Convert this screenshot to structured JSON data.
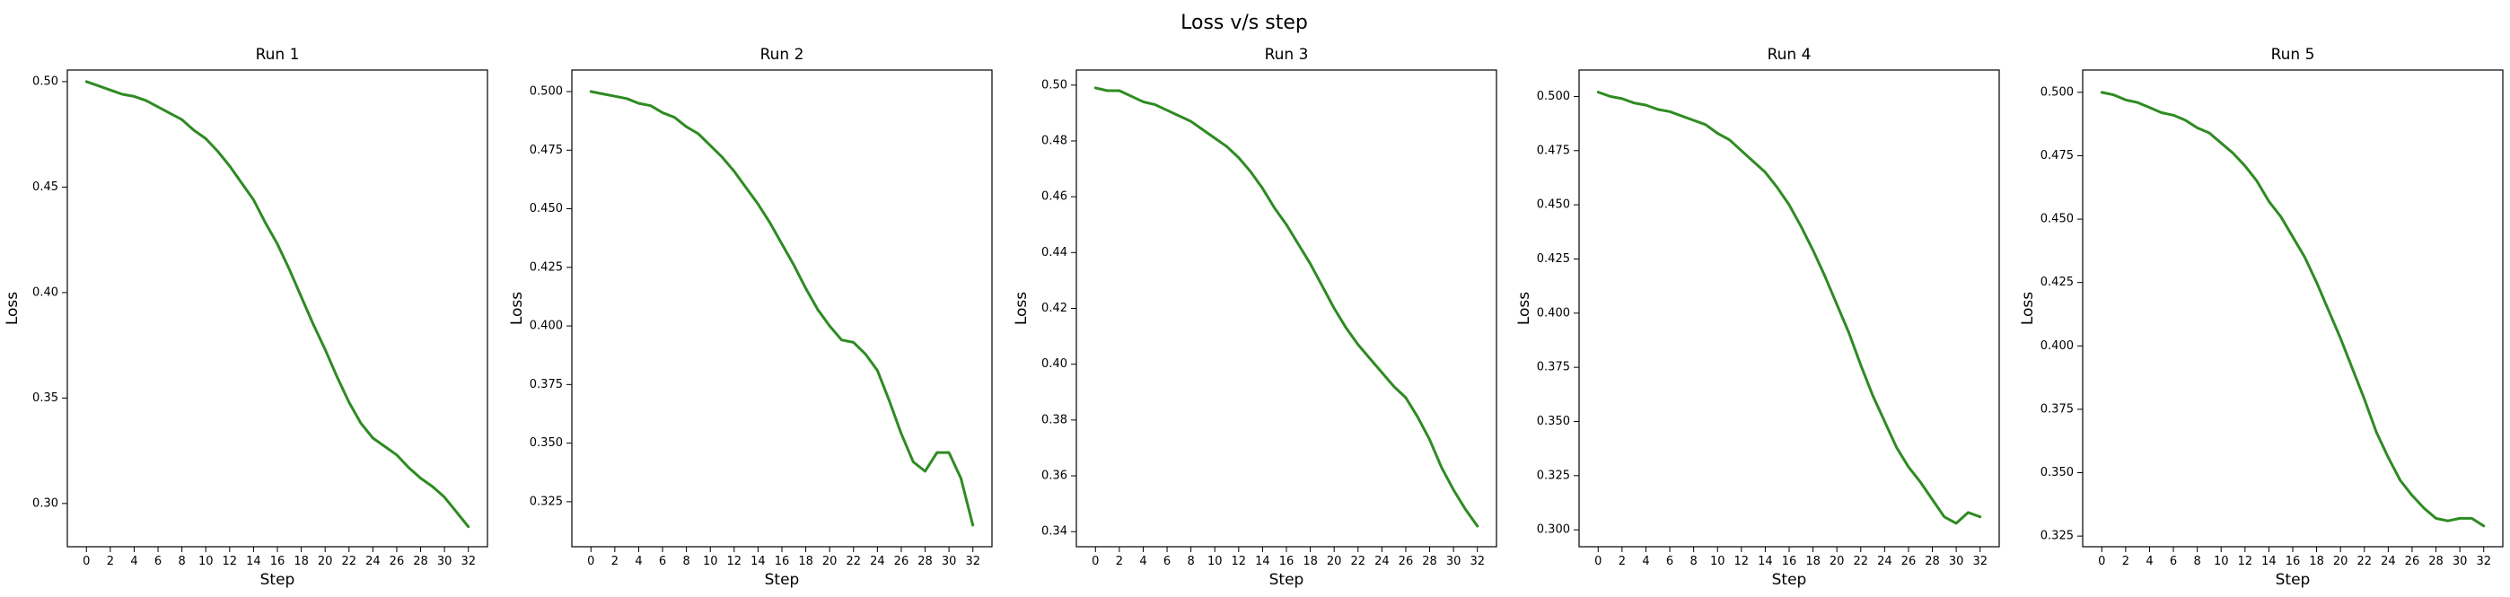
{
  "figure": {
    "title": "Loss v/s step"
  },
  "chart_data": [
    {
      "type": "line",
      "title": "Run 1",
      "xlabel": "Step",
      "ylabel": "Loss",
      "xlim": [
        -1.6,
        33.6
      ],
      "ylim": [
        0.2795,
        0.5055
      ],
      "xticks": [
        0,
        2,
        4,
        6,
        8,
        10,
        12,
        14,
        16,
        18,
        20,
        22,
        24,
        26,
        28,
        30,
        32
      ],
      "yticks": [
        0.3,
        0.35,
        0.4,
        0.45,
        0.5
      ],
      "ytick_labels": [
        "0.30",
        "0.35",
        "0.40",
        "0.45",
        "0.50"
      ],
      "line_color": "#2e8b22",
      "x": [
        0,
        1,
        2,
        3,
        4,
        5,
        6,
        7,
        8,
        9,
        10,
        11,
        12,
        13,
        14,
        15,
        16,
        17,
        18,
        19,
        20,
        21,
        22,
        23,
        24,
        25,
        26,
        27,
        28,
        29,
        30,
        31,
        32
      ],
      "values": [
        0.5,
        0.498,
        0.496,
        0.494,
        0.493,
        0.491,
        0.488,
        0.485,
        0.482,
        0.477,
        0.473,
        0.467,
        0.46,
        0.452,
        0.444,
        0.433,
        0.423,
        0.411,
        0.398,
        0.385,
        0.373,
        0.36,
        0.348,
        0.338,
        0.331,
        0.327,
        0.323,
        0.317,
        0.312,
        0.308,
        0.303,
        0.296,
        0.289
      ]
    },
    {
      "type": "line",
      "title": "Run 2",
      "xlabel": "Step",
      "ylabel": "Loss",
      "xlim": [
        -1.6,
        33.6
      ],
      "ylim": [
        0.3058,
        0.5092
      ],
      "xticks": [
        0,
        2,
        4,
        6,
        8,
        10,
        12,
        14,
        16,
        18,
        20,
        22,
        24,
        26,
        28,
        30,
        32
      ],
      "yticks": [
        0.325,
        0.35,
        0.375,
        0.4,
        0.425,
        0.45,
        0.475,
        0.5
      ],
      "ytick_labels": [
        "0.325",
        "0.350",
        "0.375",
        "0.400",
        "0.425",
        "0.450",
        "0.475",
        "0.500"
      ],
      "line_color": "#2e8b22",
      "x": [
        0,
        1,
        2,
        3,
        4,
        5,
        6,
        7,
        8,
        9,
        10,
        11,
        12,
        13,
        14,
        15,
        16,
        17,
        18,
        19,
        20,
        21,
        22,
        23,
        24,
        25,
        26,
        27,
        28,
        29,
        30,
        31,
        32
      ],
      "values": [
        0.5,
        0.499,
        0.498,
        0.497,
        0.495,
        0.494,
        0.491,
        0.489,
        0.485,
        0.482,
        0.477,
        0.472,
        0.466,
        0.459,
        0.452,
        0.444,
        0.435,
        0.426,
        0.416,
        0.407,
        0.4,
        0.394,
        0.393,
        0.388,
        0.381,
        0.368,
        0.354,
        0.342,
        0.338,
        0.346,
        0.346,
        0.335,
        0.315
      ]
    },
    {
      "type": "line",
      "title": "Run 3",
      "xlabel": "Step",
      "ylabel": "Loss",
      "xlim": [
        -1.6,
        33.6
      ],
      "ylim": [
        0.3346,
        0.5054
      ],
      "xticks": [
        0,
        2,
        4,
        6,
        8,
        10,
        12,
        14,
        16,
        18,
        20,
        22,
        24,
        26,
        28,
        30,
        32
      ],
      "yticks": [
        0.34,
        0.36,
        0.38,
        0.4,
        0.42,
        0.44,
        0.46,
        0.48,
        0.5
      ],
      "ytick_labels": [
        "0.34",
        "0.36",
        "0.38",
        "0.40",
        "0.42",
        "0.44",
        "0.46",
        "0.48",
        "0.50"
      ],
      "line_color": "#2e8b22",
      "x": [
        0,
        1,
        2,
        3,
        4,
        5,
        6,
        7,
        8,
        9,
        10,
        11,
        12,
        13,
        14,
        15,
        16,
        17,
        18,
        19,
        20,
        21,
        22,
        23,
        24,
        25,
        26,
        27,
        28,
        29,
        30,
        31,
        32
      ],
      "values": [
        0.499,
        0.498,
        0.498,
        0.496,
        0.494,
        0.493,
        0.491,
        0.489,
        0.487,
        0.484,
        0.481,
        0.478,
        0.474,
        0.469,
        0.463,
        0.456,
        0.45,
        0.443,
        0.436,
        0.428,
        0.42,
        0.413,
        0.407,
        0.402,
        0.397,
        0.392,
        0.388,
        0.381,
        0.373,
        0.363,
        0.355,
        0.348,
        0.342
      ]
    },
    {
      "type": "line",
      "title": "Run 4",
      "xlabel": "Step",
      "ylabel": "Loss",
      "xlim": [
        -1.6,
        33.6
      ],
      "ylim": [
        0.2922,
        0.5122
      ],
      "xticks": [
        0,
        2,
        4,
        6,
        8,
        10,
        12,
        14,
        16,
        18,
        20,
        22,
        24,
        26,
        28,
        30,
        32
      ],
      "yticks": [
        0.3,
        0.325,
        0.35,
        0.375,
        0.4,
        0.425,
        0.45,
        0.475,
        0.5
      ],
      "ytick_labels": [
        "0.300",
        "0.325",
        "0.350",
        "0.375",
        "0.400",
        "0.425",
        "0.450",
        "0.475",
        "0.500"
      ],
      "line_color": "#2e8b22",
      "x": [
        0,
        1,
        2,
        3,
        4,
        5,
        6,
        7,
        8,
        9,
        10,
        11,
        12,
        13,
        14,
        15,
        16,
        17,
        18,
        19,
        20,
        21,
        22,
        23,
        24,
        25,
        26,
        27,
        28,
        29,
        30,
        31,
        32
      ],
      "values": [
        0.502,
        0.5,
        0.499,
        0.497,
        0.496,
        0.494,
        0.493,
        0.491,
        0.489,
        0.487,
        0.483,
        0.48,
        0.475,
        0.47,
        0.465,
        0.458,
        0.45,
        0.44,
        0.429,
        0.417,
        0.404,
        0.391,
        0.376,
        0.362,
        0.35,
        0.338,
        0.329,
        0.322,
        0.314,
        0.306,
        0.303,
        0.308,
        0.306
      ]
    },
    {
      "type": "line",
      "title": "Run 5",
      "xlabel": "Step",
      "ylabel": "Loss",
      "xlim": [
        -1.6,
        33.6
      ],
      "ylim": [
        0.3208,
        0.5088
      ],
      "xticks": [
        0,
        2,
        4,
        6,
        8,
        10,
        12,
        14,
        16,
        18,
        20,
        22,
        24,
        26,
        28,
        30,
        32
      ],
      "yticks": [
        0.325,
        0.35,
        0.375,
        0.4,
        0.425,
        0.45,
        0.475,
        0.5
      ],
      "ytick_labels": [
        "0.325",
        "0.350",
        "0.375",
        "0.400",
        "0.425",
        "0.450",
        "0.475",
        "0.500"
      ],
      "line_color": "#2e8b22",
      "x": [
        0,
        1,
        2,
        3,
        4,
        5,
        6,
        7,
        8,
        9,
        10,
        11,
        12,
        13,
        14,
        15,
        16,
        17,
        18,
        19,
        20,
        21,
        22,
        23,
        24,
        25,
        26,
        27,
        28,
        29,
        30,
        31,
        32
      ],
      "values": [
        0.5,
        0.499,
        0.497,
        0.496,
        0.494,
        0.492,
        0.491,
        0.489,
        0.486,
        0.484,
        0.48,
        0.476,
        0.471,
        0.465,
        0.457,
        0.451,
        0.443,
        0.435,
        0.425,
        0.414,
        0.403,
        0.391,
        0.379,
        0.366,
        0.356,
        0.347,
        0.341,
        0.336,
        0.332,
        0.331,
        0.332,
        0.332,
        0.329
      ]
    }
  ]
}
